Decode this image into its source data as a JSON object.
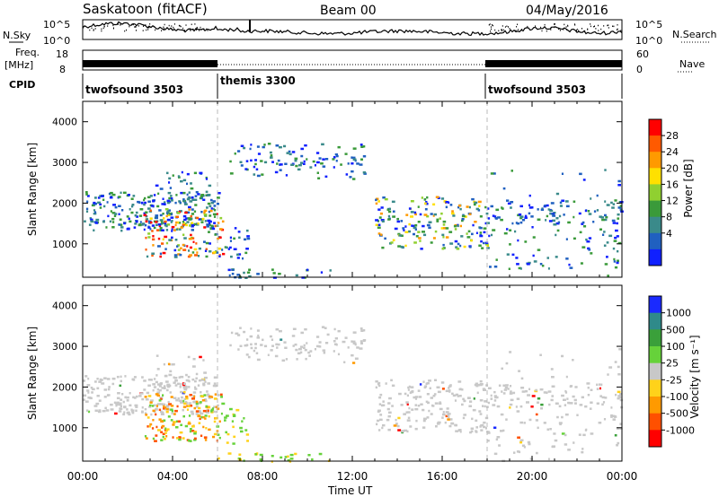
{
  "header": {
    "station": "Saskatoon (fitACF)",
    "beam": "Beam 00",
    "date": "04/May/2016"
  },
  "top_panels": {
    "nsky_label": "N.Sky",
    "nsearch_label": "N.Search",
    "nsky_ticks": [
      "10^5",
      "10^0"
    ],
    "nsearch_ticks": [
      "10^5",
      "10^0"
    ],
    "freq_label_line1": "Freq.",
    "freq_label_line2": "[MHz]",
    "freq_ticks": [
      "18",
      "8"
    ],
    "nave_label": "Nave",
    "nave_ticks": [
      "60",
      "0"
    ],
    "cpid_label": "CPID",
    "cpid_segments": [
      {
        "label": "twofsound 3503",
        "start_hour": 0,
        "end_hour": 6
      },
      {
        "label": "themis 3300",
        "start_hour": 6,
        "end_hour": 18
      },
      {
        "label": "twofsound 3503",
        "start_hour": 18,
        "end_hour": 24
      }
    ]
  },
  "chart_data": [
    {
      "type": "heatmap",
      "name": "power",
      "ylabel": "Slant Range [km]",
      "colorbar_label": "Power [dB]",
      "colorbar_ticks": [
        "28",
        "24",
        "20",
        "16",
        "12",
        "8",
        "4"
      ],
      "colorbar_colors": [
        "#ff0000",
        "#ff5a00",
        "#ff9a00",
        "#ffe000",
        "#90d030",
        "#3a9a3a",
        "#3a8a8a",
        "#2060c0",
        "#1020ff"
      ],
      "xlim_hours": [
        0,
        24
      ],
      "ylim_km": [
        180,
        4500
      ],
      "yticks": [
        1000,
        2000,
        3000,
        4000
      ]
    },
    {
      "type": "heatmap",
      "name": "velocity",
      "ylabel": "Slant Range [km]",
      "colorbar_label": "Velocity [m s⁻¹]",
      "colorbar_ticks": [
        "1000",
        "500",
        "100",
        "25",
        "-25",
        "-100",
        "-500",
        "-1000"
      ],
      "colorbar_colors": [
        "#1a2aff",
        "#2f8a8a",
        "#3aa03a",
        "#66d23a",
        "#c8c8c8",
        "#ffd21a",
        "#ff9a00",
        "#ff5000",
        "#ff0000"
      ],
      "xlim_hours": [
        0,
        24
      ],
      "ylim_km": [
        180,
        4500
      ],
      "yticks": [
        1000,
        2000,
        3000,
        4000
      ]
    }
  ],
  "x_axis": {
    "label": "Time UT",
    "ticks": [
      "00:00",
      "04:00",
      "08:00",
      "12:00",
      "16:00",
      "20:00",
      "00:00"
    ]
  }
}
